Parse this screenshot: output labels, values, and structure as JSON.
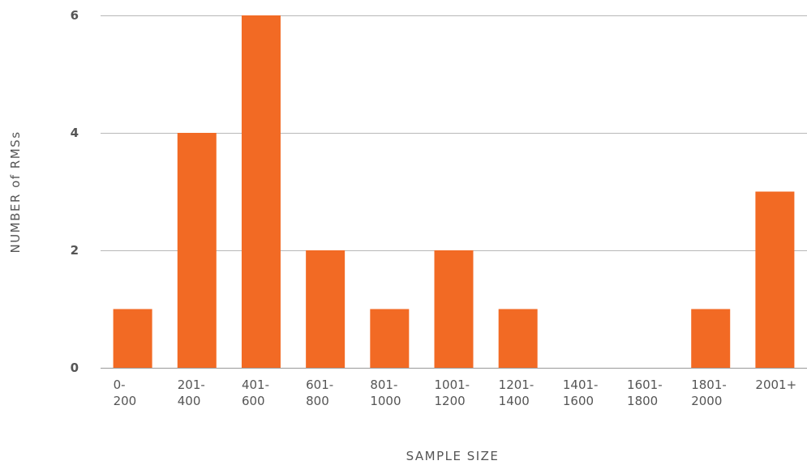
{
  "chart_data": {
    "type": "bar",
    "title": "",
    "xlabel": "SAMPLE SIZE",
    "ylabel": "NUMBER of RMSs",
    "categories": [
      [
        "0-",
        "200"
      ],
      [
        "201-",
        "400"
      ],
      [
        "401-",
        "600"
      ],
      [
        "601-",
        "800"
      ],
      [
        "801-",
        "1000"
      ],
      [
        "1001-",
        "1200"
      ],
      [
        "1201-",
        "1400"
      ],
      [
        "1401-",
        "1600"
      ],
      [
        "1601-",
        "1800"
      ],
      [
        "1801-",
        "2000"
      ],
      [
        "2001+"
      ]
    ],
    "values": [
      1,
      4,
      6,
      2,
      1,
      2,
      1,
      0,
      0,
      1,
      3
    ],
    "ylim": [
      0,
      6
    ],
    "yticks": [
      "0",
      "2",
      "4",
      "6"
    ],
    "grid": true,
    "legend": "none",
    "bar_color": "#f26a24"
  }
}
